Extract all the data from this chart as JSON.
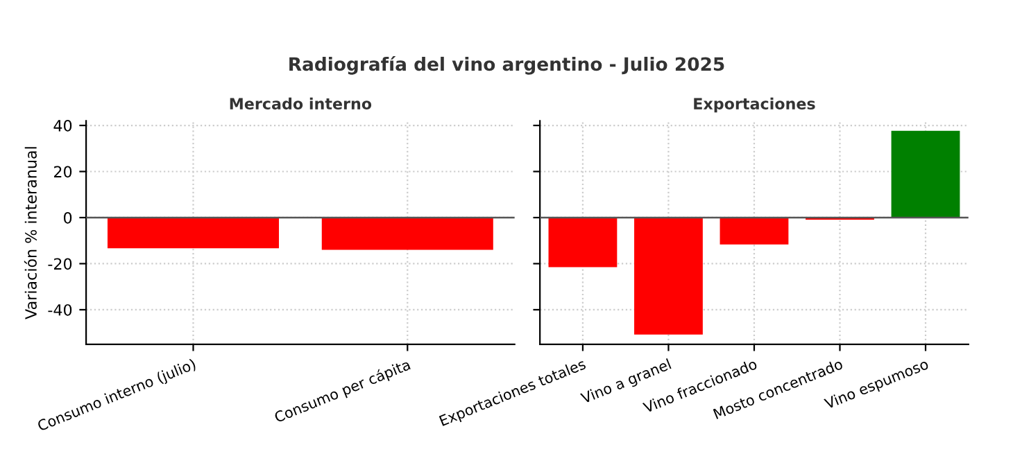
{
  "chart_data": [
    {
      "type": "bar",
      "title": "Mercado interno",
      "annotations": [
        "Radiografía del vino argentino - Julio 2025"
      ],
      "ylabel": "Variación % interanual",
      "categories": [
        "Consumo interno (julio)",
        "Consumo per cápita"
      ],
      "values": [
        -13.3,
        -14.0
      ],
      "colors": [
        "#ff0000",
        "#ff0000"
      ],
      "ylim": [
        -55,
        42
      ],
      "yticks": [
        -40,
        -20,
        0,
        20,
        40
      ],
      "grid": true,
      "ref_lines": [
        {
          "axis": "y",
          "value": 0,
          "color": "#555555"
        }
      ]
    },
    {
      "type": "bar",
      "title": "Exportaciones",
      "categories": [
        "Exportaciones totales",
        "Vino a granel",
        "Vino fraccionado",
        "Mosto concentrado",
        "Vino espumoso"
      ],
      "values": [
        -21.5,
        -50.8,
        -11.7,
        -0.9,
        37.7
      ],
      "colors": [
        "#ff0000",
        "#ff0000",
        "#ff0000",
        "#ff0000",
        "#008000"
      ],
      "ylim": [
        -55,
        42
      ],
      "yticks": [
        -40,
        -20,
        0,
        20,
        40
      ],
      "tick_labels": "x",
      "grid": true,
      "ref_lines": [
        {
          "axis": "y",
          "value": 0,
          "color": "#555555"
        }
      ]
    }
  ]
}
